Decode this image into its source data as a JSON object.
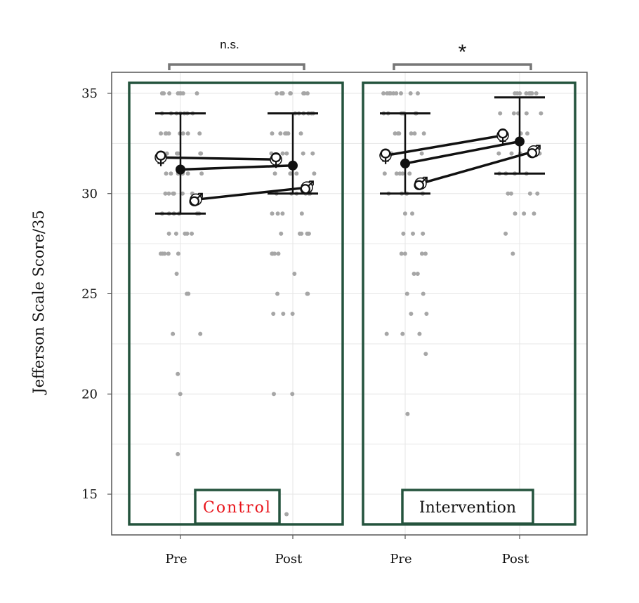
{
  "chart_data": {
    "type": "scatter",
    "ylabel": "Jefferson Scale Score/35",
    "ylim": [
      13,
      36
    ],
    "yticks": [
      15,
      20,
      25,
      30,
      35
    ],
    "grid": true,
    "colors": {
      "points": "#a6a6a6",
      "panel_box": "#24533d",
      "control_label": "#e8141b",
      "intervention_label": "#111111",
      "bracket": "#777777"
    },
    "panels": [
      {
        "group": "Control",
        "significance": "n.s.",
        "x_labels": [
          "Pre",
          "Post"
        ],
        "summary": {
          "mean": [
            31.2,
            31.4
          ],
          "error_low": [
            29,
            30
          ],
          "error_high": [
            34,
            34
          ]
        },
        "sex_means": {
          "female": [
            31.8,
            31.7
          ],
          "male": [
            29.7,
            30.3
          ]
        },
        "points": {
          "Pre": [
            35,
            35,
            35,
            35,
            35,
            35,
            35,
            35,
            34,
            34,
            34,
            34,
            34,
            34,
            34,
            33,
            33,
            33,
            33,
            33,
            33,
            33,
            33,
            32,
            32,
            32,
            32,
            32,
            32,
            31,
            31,
            31,
            31,
            31,
            31,
            30,
            30,
            30,
            30,
            30,
            30,
            29,
            29,
            29,
            29,
            29,
            29,
            28,
            28,
            28,
            28,
            28,
            27,
            27,
            27,
            27,
            27,
            26,
            25,
            25,
            23,
            23,
            21,
            20,
            17
          ],
          "Post": [
            35,
            35,
            35,
            35,
            35,
            35,
            35,
            35,
            35,
            34,
            34,
            34,
            34,
            34,
            34,
            34,
            33,
            33,
            33,
            33,
            33,
            33,
            32,
            32,
            32,
            32,
            32,
            31,
            31,
            31,
            31,
            31,
            30,
            30,
            30,
            30,
            30,
            30,
            29,
            29,
            29,
            29,
            28,
            28,
            28,
            28,
            28,
            27,
            27,
            27,
            27,
            26,
            25,
            25,
            25,
            24,
            24,
            24,
            20,
            20,
            14
          ]
        }
      },
      {
        "group": "Intervention",
        "significance": "*",
        "x_labels": [
          "Pre",
          "Post"
        ],
        "summary": {
          "mean": [
            31.5,
            32.6
          ],
          "error_low": [
            30,
            31
          ],
          "error_high": [
            34,
            34.8
          ]
        },
        "sex_means": {
          "female": [
            31.9,
            32.9
          ],
          "male": [
            30.5,
            32.1
          ]
        },
        "points": {
          "Pre": [
            35,
            35,
            35,
            35,
            35,
            35,
            35,
            35,
            35,
            34,
            34,
            34,
            34,
            34,
            34,
            34,
            33,
            33,
            33,
            33,
            33,
            33,
            32,
            32,
            32,
            32,
            32,
            31,
            31,
            31,
            31,
            31,
            30,
            30,
            30,
            30,
            30,
            30,
            29,
            29,
            28,
            28,
            28,
            27,
            27,
            27,
            27,
            26,
            26,
            25,
            25,
            24,
            24,
            23,
            23,
            23,
            22,
            19
          ],
          "Post": [
            35,
            35,
            35,
            35,
            35,
            35,
            35,
            35,
            34,
            34,
            34,
            34,
            34,
            33,
            33,
            33,
            33,
            33,
            32,
            32,
            32,
            32,
            31,
            31,
            31,
            31,
            30,
            30,
            30,
            30,
            29,
            29,
            29,
            28,
            27
          ]
        }
      }
    ]
  }
}
